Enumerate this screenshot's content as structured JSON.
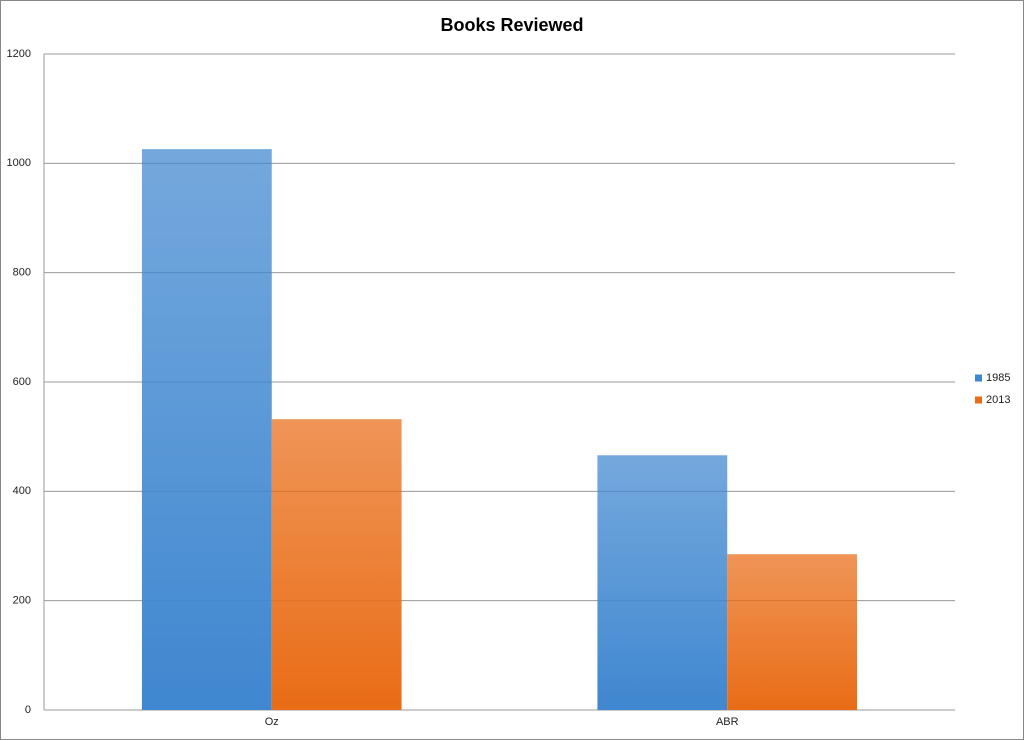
{
  "chart_data": {
    "type": "bar",
    "title": "Books Reviewed",
    "categories": [
      "Oz",
      "ABR"
    ],
    "series": [
      {
        "name": "1985",
        "color": "#3f87d0",
        "values": [
          1026,
          466
        ]
      },
      {
        "name": "2013",
        "color": "#e96c16",
        "values": [
          532,
          285
        ]
      }
    ],
    "ylim": [
      0,
      1200
    ],
    "yticks": [
      0,
      200,
      400,
      600,
      800,
      1000,
      1200
    ],
    "grid": true,
    "legend": "right"
  }
}
